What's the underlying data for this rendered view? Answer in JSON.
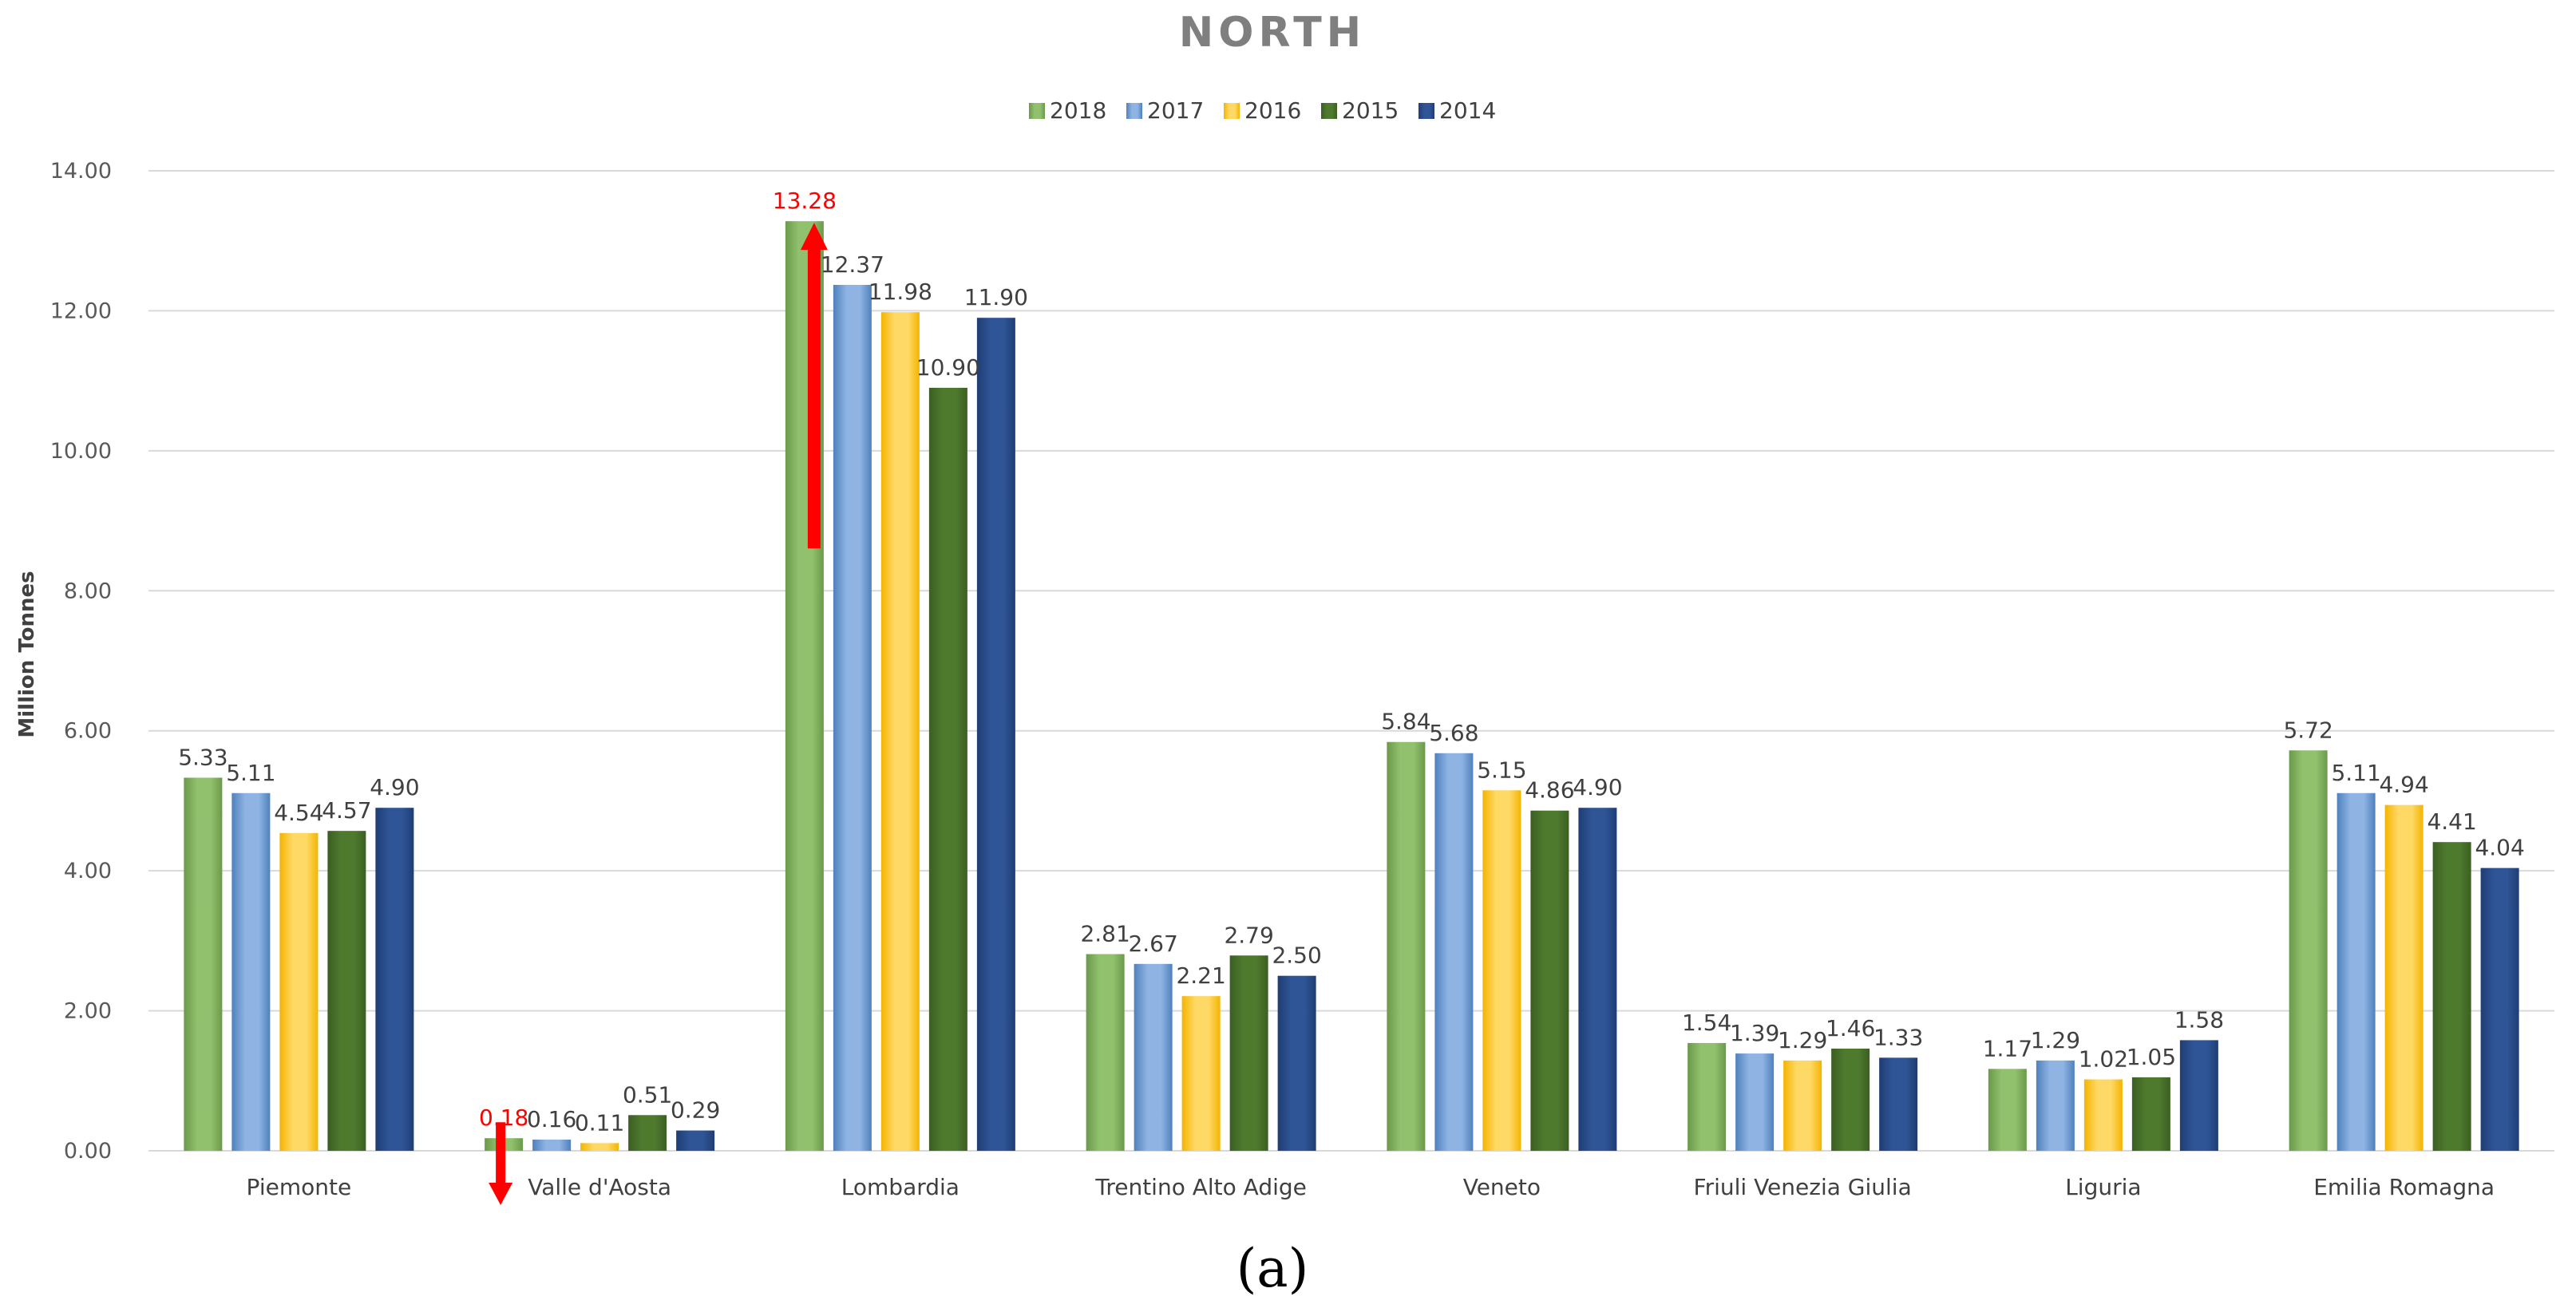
{
  "chart_data": {
    "type": "bar",
    "title": "NORTH",
    "xlabel": "",
    "ylabel": "Million Tonnes",
    "ylim": [
      0,
      14
    ],
    "yticks": [
      "0.00",
      "2.00",
      "4.00",
      "6.00",
      "8.00",
      "10.00",
      "12.00",
      "14.00"
    ],
    "grid": true,
    "legend_position": "top",
    "categories": [
      "Piemonte",
      "Valle d'Aosta",
      "Lombardia",
      "Trentino Alto Adige",
      "Veneto",
      "Friuli Venezia Giulia",
      "Liguria",
      "Emilia Romagna"
    ],
    "series": [
      {
        "name": "2018",
        "color": "#92c16e",
        "colorDark": "#6a9a4a",
        "values": [
          5.33,
          0.18,
          13.28,
          2.81,
          5.84,
          1.54,
          1.17,
          5.72
        ],
        "labels": [
          "5.33",
          "0.18",
          "13.28",
          "2.81",
          "5.84",
          "1.54",
          "1.17",
          "5.72"
        ]
      },
      {
        "name": "2017",
        "color": "#8fb4e3",
        "colorDark": "#4f81bd",
        "values": [
          5.11,
          0.16,
          12.37,
          2.67,
          5.68,
          1.39,
          1.29,
          5.11
        ],
        "labels": [
          "5.11",
          "0.16",
          "12.37",
          "2.67",
          "5.68",
          "1.39",
          "1.29",
          "5.11"
        ]
      },
      {
        "name": "2016",
        "color": "#ffd966",
        "colorDark": "#f4b400",
        "values": [
          4.54,
          0.11,
          11.98,
          2.21,
          5.15,
          1.29,
          1.02,
          4.94
        ],
        "labels": [
          "4.54",
          "0.11",
          "11.98",
          "2.21",
          "5.15",
          "1.29",
          "1.02",
          "4.94"
        ]
      },
      {
        "name": "2015",
        "color": "#4e7a2e",
        "colorDark": "#3b5f22",
        "values": [
          4.57,
          0.51,
          10.9,
          2.79,
          4.86,
          1.46,
          1.05,
          4.41
        ],
        "labels": [
          "4.57",
          "0.51",
          "10.90",
          "2.79",
          "4.86",
          "1.46",
          "1.05",
          "4.41"
        ]
      },
      {
        "name": "2014",
        "color": "#2f5597",
        "colorDark": "#1f3d73",
        "values": [
          4.9,
          0.29,
          11.9,
          2.5,
          4.9,
          1.33,
          1.58,
          4.04
        ],
        "labels": [
          "4.90",
          "0.29",
          "11.90",
          "2.50",
          "4.90",
          "1.33",
          "1.58",
          "4.04"
        ]
      }
    ],
    "highlights": [
      {
        "category": "Valle d'Aosta",
        "series": "2018",
        "direction": "down",
        "label_color": "#ff0000"
      },
      {
        "category": "Lombardia",
        "series": "2018",
        "direction": "up",
        "label_color": "#ff0000"
      }
    ]
  },
  "caption": "(a)",
  "colors": {
    "grid": "#d9d9d9",
    "arrow": "#ff0000"
  }
}
